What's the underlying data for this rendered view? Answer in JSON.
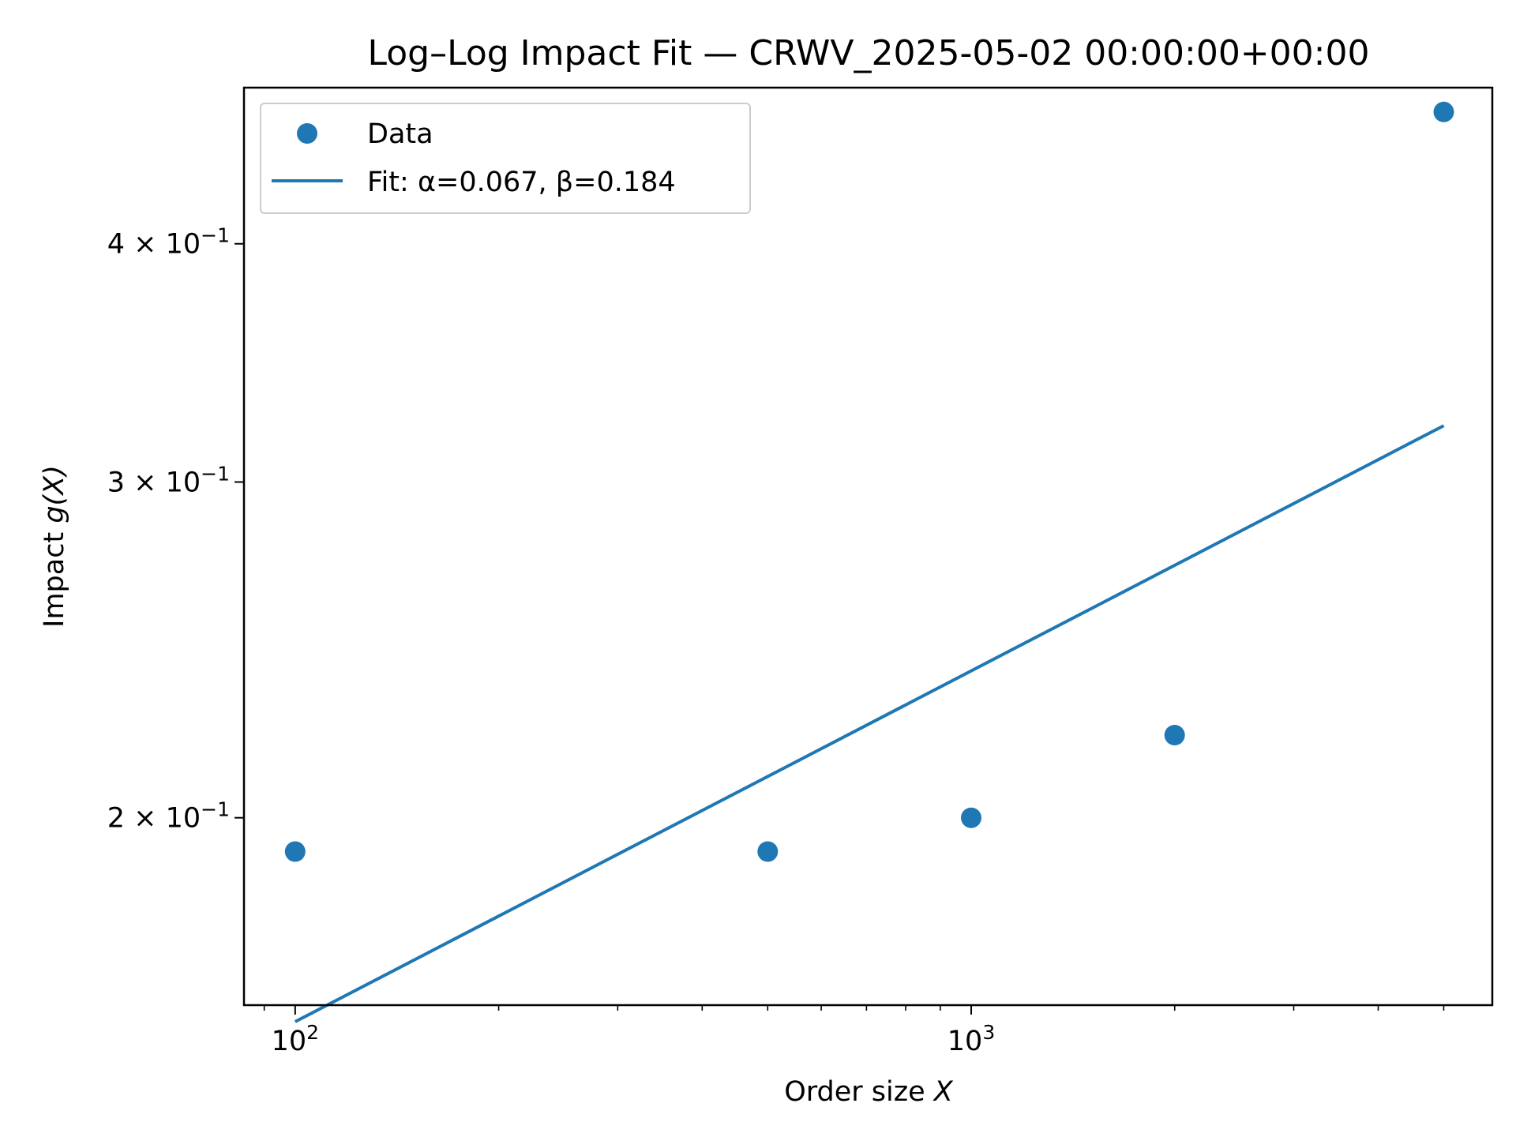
{
  "chart_data": {
    "type": "scatter",
    "title": "Log–Log Impact Fit — CRWV_2025-05-02 00:00:00+00:00",
    "xlabel": "Order size",
    "xlabel_var": "X",
    "ylabel": "Impact",
    "ylabel_var": "g(X)",
    "xscale": "log",
    "yscale": "log",
    "xlim": [
      84,
      5900
    ],
    "ylim": [
      0.1595,
      0.483
    ],
    "x_ticks": [
      {
        "value": 100,
        "label_base": "10",
        "label_exp": "2"
      },
      {
        "value": 1000,
        "label_base": "10",
        "label_exp": "3"
      }
    ],
    "y_ticks": [
      {
        "value": 0.2,
        "label_mant": "2 × 10",
        "label_exp": "−1"
      },
      {
        "value": 0.3,
        "label_mant": "3 × 10",
        "label_exp": "−1"
      },
      {
        "value": 0.4,
        "label_mant": "4 × 10",
        "label_exp": "−1"
      }
    ],
    "series": [
      {
        "name": "Data",
        "kind": "scatter",
        "color": "#1f77b4",
        "x": [
          100,
          500,
          1000,
          2000,
          5000
        ],
        "y": [
          0.192,
          0.192,
          0.2,
          0.221,
          0.469
        ]
      },
      {
        "name": "Fit: α=0.067, β=0.184",
        "kind": "line",
        "color": "#1f77b4",
        "alpha": 0.067,
        "beta": 0.184,
        "x": [
          100,
          5000
        ]
      }
    ],
    "legend": "top-left",
    "grid": false
  }
}
